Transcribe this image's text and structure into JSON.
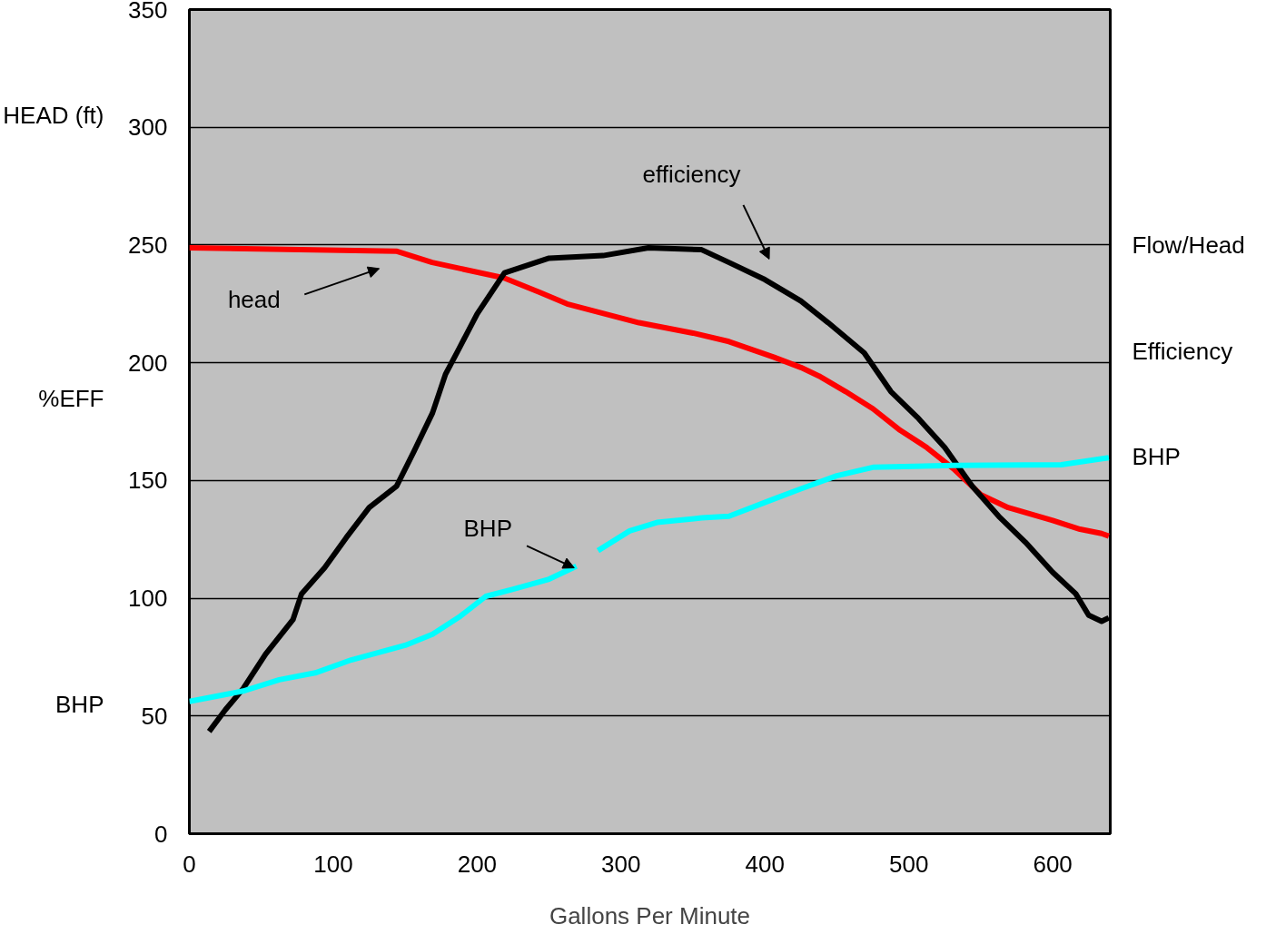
{
  "chart_data": {
    "type": "line",
    "xlabel": "Gallons Per Minute",
    "ylabel": "HEAD (ft)",
    "xlim": [
      0,
      640
    ],
    "xticks": [
      0,
      100,
      200,
      300,
      400,
      500,
      600
    ],
    "ylim": [
      0,
      350
    ],
    "yticks": [
      0,
      50,
      100,
      150,
      200,
      250,
      300,
      350
    ],
    "grid": "y",
    "marker": "none",
    "line_style": "solid",
    "series": [
      {
        "color": "#ff0000",
        "x": [
          0,
          143.75,
          168.75,
          218.75,
          243.75,
          262.5,
          312.5,
          350,
          375,
          406,
          425,
          437.5,
          456,
          475,
          494,
          512.5,
          531,
          550,
          569,
          600,
          619,
          634,
          639
        ],
        "values": [
          248.8,
          247.4,
          242.6,
          236,
          229.8,
          225,
          217,
          212.6,
          209,
          202.4,
          198,
          194.4,
          187.8,
          180.5,
          171.3,
          164,
          155,
          144,
          138.5,
          133,
          129.3,
          127.5,
          126.4
        ]
      },
      {
        "color": "#000000",
        "x": [
          13.75,
          25,
          37.5,
          53,
          72,
          78,
          94,
          109,
          125,
          144,
          156,
          169,
          178,
          187.5,
          200,
          219,
          250,
          287.5,
          319,
          356,
          375,
          400,
          425,
          444,
          469,
          487.5,
          506,
          525,
          544,
          562.5,
          581,
          600,
          616,
          625,
          634,
          639
        ],
        "values": [
          43.4,
          52.6,
          61.7,
          76.3,
          90.9,
          101.9,
          112.9,
          125.7,
          138.5,
          147.6,
          162.2,
          178.7,
          195.1,
          206.1,
          220.7,
          238.2,
          244.4,
          245.5,
          248.8,
          248,
          242.6,
          235.3,
          226.2,
          217,
          204.2,
          187.8,
          176.8,
          164,
          147.6,
          134.8,
          123.8,
          111,
          101.9,
          92.8,
          90.2,
          91.7
        ]
      },
      {
        "color": "#00ffff",
        "x": [
          0,
          37.5,
          62.5,
          87.5,
          112.5,
          150,
          169,
          187.5,
          206,
          225,
          250,
          269,
          276,
          284,
          306,
          325,
          356,
          375,
          406,
          425,
          450,
          475,
          531,
          606,
          639
        ],
        "values": [
          56.2,
          60.6,
          65.4,
          68.3,
          73.8,
          80,
          84.7,
          92,
          100.8,
          103.8,
          108.1,
          113.6,
          null,
          120.2,
          128.6,
          132.2,
          134.1,
          134.8,
          142.1,
          146.5,
          152,
          155.6,
          156.4,
          156.7,
          159.7
        ]
      }
    ],
    "annotations": [
      "head",
      "efficiency",
      {
        "text": "BHP",
        "x": 267.5,
        "y": 112.9
      },
      "%EFF",
      "BHP",
      "Flow/Head",
      "Efficiency",
      "BHP"
    ]
  }
}
